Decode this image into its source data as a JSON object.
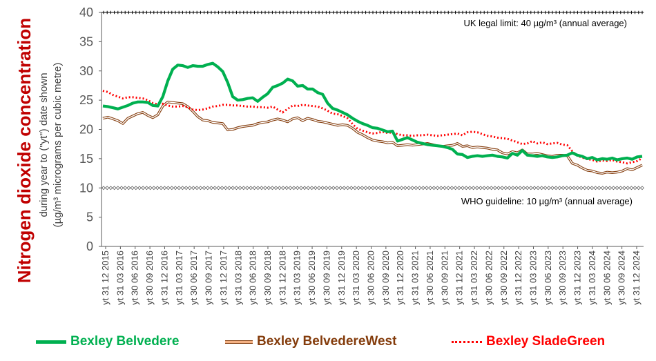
{
  "chart_data": {
    "type": "line",
    "ylabel_title": "Nitrogen dioxide concentration",
    "ylabel_line1": "during year to (\"yt\") date shown",
    "ylabel_line2": "(µg/m³ micrograms per cubic metre)",
    "ylim": [
      0,
      40
    ],
    "yticks": [
      "0",
      "5",
      "10",
      "15",
      "20",
      "25",
      "30",
      "35",
      "40"
    ],
    "grid": false,
    "legend_position": "bottom",
    "x_labels": [
      "yt 31 12 2015",
      "yt 31 03 2016",
      "yt 30 06 2016",
      "yt 30 09 2016",
      "yt 31 12 2016",
      "yt 31 03 2017",
      "yt 30 06 2017",
      "yt 30 09 2017",
      "yt 31 12 2017",
      "yt 31 03 2018",
      "yt 30 06 2018",
      "yt 30 09 2018",
      "yt 31 12 2018",
      "yt 31 03 2019",
      "yt 30 06 2019",
      "yt 30 09 2019",
      "yt 31 12 2019",
      "yt 31 03 2020",
      "yt 30 06 2020",
      "yt 30 09 2020",
      "yt 31 12 2020",
      "yt 31 03 2021",
      "yt 30 06 2021",
      "yt 30 09 2021",
      "yt 31 12 2021",
      "yt 31 03 2022",
      "yt 30 06 2022",
      "yt 30 09 2022",
      "yt 31 12 2022",
      "yt 31 03 2023",
      "yt 30 06 2023",
      "yt 30 09 2023",
      "yt 31 12 2023",
      "yt 31 03 2024",
      "yt 30 06 2024",
      "yt 30 09 2024",
      "yt 31 12 2024"
    ],
    "reference_lines": [
      {
        "value": 40,
        "label": "UK legal limit:  40 µg/m³ (annual average)",
        "color": "#000000"
      },
      {
        "value": 10,
        "label": "WHO guideline:  10 µg/m³ (annual average)",
        "color": "#606060"
      }
    ],
    "series": [
      {
        "name": "Bexley Belvedere",
        "color": "#00b050",
        "values": [
          24.0,
          23.9,
          23.7,
          23.5,
          23.8,
          24.1,
          24.5,
          24.7,
          24.7,
          24.6,
          24.1,
          24.0,
          25.6,
          28.3,
          30.3,
          31.0,
          30.9,
          30.6,
          30.9,
          30.8,
          30.8,
          31.1,
          31.3,
          30.7,
          29.9,
          28.0,
          25.6,
          25.0,
          25.1,
          25.3,
          25.4,
          24.8,
          25.5,
          26.1,
          27.2,
          27.5,
          27.9,
          28.6,
          28.3,
          27.4,
          27.5,
          26.9,
          26.9,
          26.3,
          26.0,
          24.5,
          23.6,
          23.3,
          22.9,
          22.5,
          21.9,
          21.4,
          21.0,
          20.7,
          20.3,
          20.2,
          19.9,
          19.6,
          19.7,
          18.0,
          18.3,
          18.6,
          18.2,
          17.8,
          17.6,
          17.4,
          17.3,
          17.2,
          17.1,
          16.9,
          16.6,
          15.8,
          15.7,
          15.2,
          15.4,
          15.5,
          15.4,
          15.5,
          15.6,
          15.4,
          15.3,
          15.1,
          15.9,
          15.6,
          16.4,
          15.6,
          15.5,
          15.4,
          15.5,
          15.3,
          15.2,
          15.3,
          15.5,
          15.6,
          16.0,
          15.6,
          15.4,
          15.0,
          15.2,
          14.8,
          15.0,
          14.9,
          15.1,
          14.8,
          15.0,
          15.1,
          14.9,
          15.3,
          15.4
        ]
      },
      {
        "name": "Bexley BelvedereWest",
        "color": "#843c0c",
        "values": [
          21.9,
          22.1,
          21.8,
          21.5,
          21.0,
          21.9,
          22.3,
          22.7,
          22.9,
          22.4,
          22.0,
          22.5,
          24.0,
          24.7,
          24.6,
          24.5,
          24.4,
          23.9,
          23.1,
          22.2,
          21.6,
          21.5,
          21.2,
          21.1,
          21.0,
          19.9,
          20.0,
          20.3,
          20.5,
          20.6,
          20.7,
          21.0,
          21.2,
          21.3,
          21.6,
          21.8,
          21.6,
          21.3,
          21.8,
          22.0,
          21.5,
          21.9,
          21.7,
          21.4,
          21.3,
          21.1,
          20.9,
          20.7,
          20.8,
          20.7,
          20.2,
          19.5,
          19.1,
          18.6,
          18.2,
          18.0,
          17.9,
          17.7,
          17.8,
          17.2,
          17.3,
          17.4,
          17.3,
          17.4,
          17.5,
          17.6,
          17.4,
          17.2,
          17.1,
          17.2,
          17.3,
          17.6,
          17.1,
          17.2,
          16.9,
          17.0,
          16.9,
          16.8,
          16.6,
          16.5,
          16.0,
          15.8,
          16.2,
          16.0,
          16.5,
          15.8,
          15.8,
          15.9,
          15.7,
          15.5,
          15.4,
          15.6,
          15.6,
          15.5,
          14.2,
          13.9,
          13.4,
          13.0,
          12.9,
          12.6,
          12.5,
          12.7,
          12.6,
          12.7,
          12.9,
          13.3,
          13.1,
          13.5,
          13.9
        ]
      },
      {
        "name": "Bexley SladeGreen",
        "color": "#ff0000",
        "values": [
          26.6,
          26.4,
          25.9,
          25.6,
          25.3,
          25.5,
          25.5,
          25.4,
          25.3,
          25.0,
          24.5,
          24.3,
          24.4,
          24.1,
          23.9,
          23.9,
          24.0,
          23.8,
          23.4,
          23.3,
          23.4,
          23.6,
          23.9,
          24.0,
          24.2,
          24.2,
          24.1,
          24.1,
          24.0,
          23.9,
          23.9,
          23.8,
          23.8,
          23.7,
          23.9,
          23.4,
          22.9,
          23.5,
          24.1,
          24.0,
          24.2,
          24.1,
          24.0,
          23.9,
          23.6,
          23.2,
          22.7,
          22.6,
          22.3,
          21.9,
          20.9,
          20.1,
          19.8,
          19.5,
          19.3,
          19.4,
          19.6,
          19.4,
          19.5,
          19.2,
          19.0,
          19.0,
          18.9,
          19.0,
          19.0,
          19.1,
          19.0,
          18.9,
          19.0,
          19.1,
          19.2,
          19.3,
          19.0,
          19.5,
          19.6,
          19.5,
          19.2,
          18.9,
          18.8,
          18.6,
          18.5,
          18.4,
          18.1,
          17.8,
          17.5,
          17.6,
          18.0,
          17.6,
          17.8,
          17.5,
          17.6,
          17.7,
          17.4,
          17.3,
          16.3,
          15.5,
          15.2,
          14.9,
          14.8,
          14.5,
          14.7,
          14.6,
          14.8,
          14.5,
          14.4,
          14.2,
          14.4,
          14.6,
          15.1
        ]
      }
    ]
  }
}
